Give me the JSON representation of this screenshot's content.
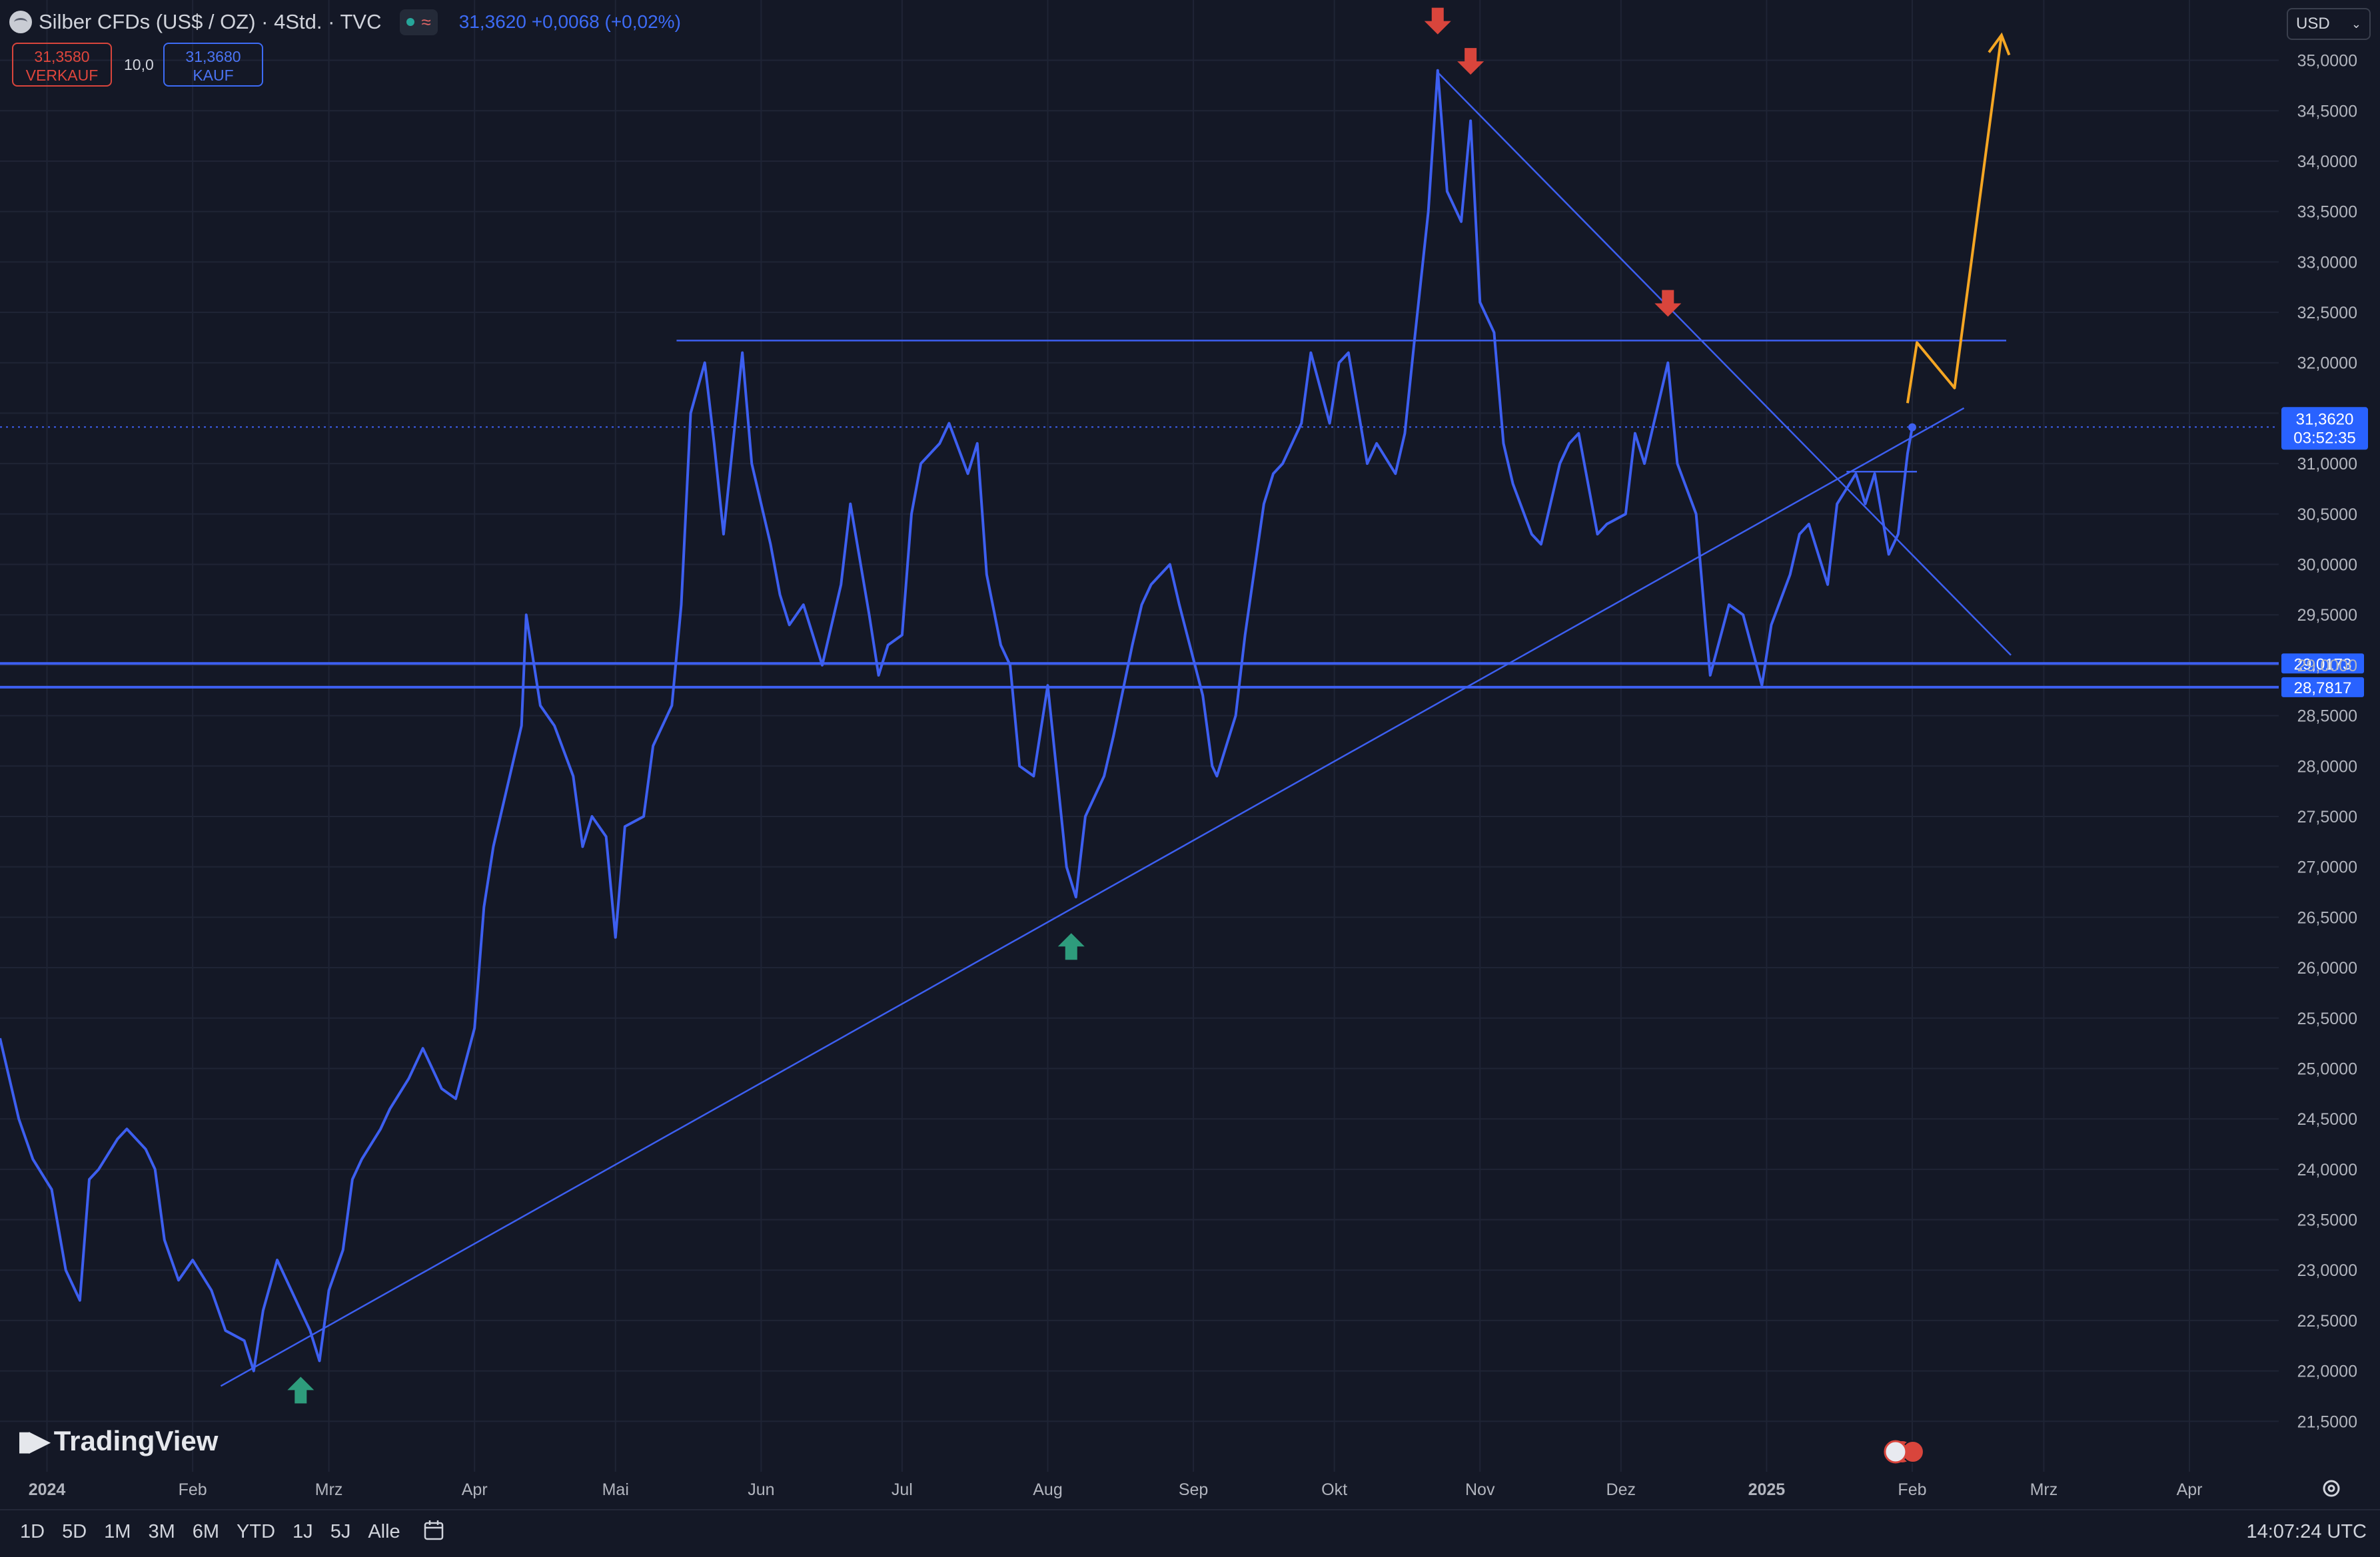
{
  "header": {
    "symbol_title": "Silber CFDs (US$ / OZ) · 4Std. · TVC",
    "last_price": "31,3620",
    "change": "+0,0068 (+0,02%)",
    "sell_price": "31,3580",
    "sell_label": "VERKAUF",
    "spread": "10,0",
    "buy_price": "31,3680",
    "buy_label": "KAUF",
    "currency": "USD"
  },
  "branding": {
    "logo_text": "TradingView"
  },
  "bottom_bar": {
    "ranges": [
      "1D",
      "5D",
      "1M",
      "3M",
      "6M",
      "YTD",
      "1J",
      "5J",
      "Alle"
    ],
    "clock": "14:07:24 UTC"
  },
  "colors": {
    "background": "#141826",
    "price_line": "#3d5ff0",
    "drawing_line": "#3d5ff0",
    "arrow_down": "#d9453c",
    "arrow_up": "#2e9c7c",
    "projection": "#f5a623",
    "label_bg": "#2962ff"
  },
  "chart_data": {
    "type": "line",
    "title": "Silber CFDs (US$ / OZ) · 4Std. · TVC",
    "xlabel": "",
    "ylabel": "",
    "x_tick_labels": [
      "2024",
      "Feb",
      "Mrz",
      "Apr",
      "Mai",
      "Jun",
      "Jul",
      "Aug",
      "Sep",
      "Okt",
      "Nov",
      "Dez",
      "2025",
      "Feb",
      "Mrz",
      "Apr"
    ],
    "x_tick_dates": [
      "2024-01-01",
      "2024-02-01",
      "2024-03-01",
      "2024-04-01",
      "2024-05-01",
      "2024-06-01",
      "2024-07-01",
      "2024-08-01",
      "2024-09-01",
      "2024-10-01",
      "2024-11-01",
      "2024-12-01",
      "2025-01-01",
      "2025-02-01",
      "2025-03-01",
      "2025-04-01"
    ],
    "y_tick_labels": [
      "21,5000",
      "22,0000",
      "22,5000",
      "23,0000",
      "23,5000",
      "24,0000",
      "24,5000",
      "25,0000",
      "25,5000",
      "26,0000",
      "26,5000",
      "27,0000",
      "27,5000",
      "28,0000",
      "28,5000",
      "29,0000",
      "29,5000",
      "30,0000",
      "30,5000",
      "31,0000",
      "31,5000",
      "32,0000",
      "32,5000",
      "33,0000",
      "33,5000",
      "34,0000",
      "34,5000",
      "35,0000"
    ],
    "ylim": [
      21.0,
      35.4
    ],
    "xlim": [
      "2023-12-22",
      "2025-04-20"
    ],
    "grid": true,
    "series": [
      {
        "points": [
          [
            "2023-12-22",
            25.3
          ],
          [
            "2023-12-26",
            24.5
          ],
          [
            "2023-12-29",
            24.1
          ],
          [
            "2024-01-02",
            23.8
          ],
          [
            "2024-01-05",
            23.0
          ],
          [
            "2024-01-08",
            22.7
          ],
          [
            "2024-01-10",
            23.9
          ],
          [
            "2024-01-12",
            24.0
          ],
          [
            "2024-01-16",
            24.3
          ],
          [
            "2024-01-18",
            24.4
          ],
          [
            "2024-01-22",
            24.2
          ],
          [
            "2024-01-24",
            24.0
          ],
          [
            "2024-01-26",
            23.3
          ],
          [
            "2024-01-29",
            22.9
          ],
          [
            "2024-02-01",
            23.1
          ],
          [
            "2024-02-05",
            22.8
          ],
          [
            "2024-02-08",
            22.4
          ],
          [
            "2024-02-12",
            22.3
          ],
          [
            "2024-02-14",
            22.0
          ],
          [
            "2024-02-16",
            22.6
          ],
          [
            "2024-02-19",
            23.1
          ],
          [
            "2024-02-22",
            22.8
          ],
          [
            "2024-02-26",
            22.4
          ],
          [
            "2024-02-28",
            22.1
          ],
          [
            "2024-03-01",
            22.8
          ],
          [
            "2024-03-04",
            23.2
          ],
          [
            "2024-03-06",
            23.9
          ],
          [
            "2024-03-08",
            24.1
          ],
          [
            "2024-03-12",
            24.4
          ],
          [
            "2024-03-14",
            24.6
          ],
          [
            "2024-03-18",
            24.9
          ],
          [
            "2024-03-21",
            25.2
          ],
          [
            "2024-03-25",
            24.8
          ],
          [
            "2024-03-28",
            24.7
          ],
          [
            "2024-04-01",
            25.4
          ],
          [
            "2024-04-03",
            26.6
          ],
          [
            "2024-04-05",
            27.2
          ],
          [
            "2024-04-08",
            27.8
          ],
          [
            "2024-04-11",
            28.4
          ],
          [
            "2024-04-12",
            29.5
          ],
          [
            "2024-04-15",
            28.6
          ],
          [
            "2024-04-18",
            28.4
          ],
          [
            "2024-04-22",
            27.9
          ],
          [
            "2024-04-24",
            27.2
          ],
          [
            "2024-04-26",
            27.5
          ],
          [
            "2024-04-29",
            27.3
          ],
          [
            "2024-05-01",
            26.3
          ],
          [
            "2024-05-03",
            27.4
          ],
          [
            "2024-05-07",
            27.5
          ],
          [
            "2024-05-09",
            28.2
          ],
          [
            "2024-05-13",
            28.6
          ],
          [
            "2024-05-15",
            29.6
          ],
          [
            "2024-05-17",
            31.5
          ],
          [
            "2024-05-20",
            32.0
          ],
          [
            "2024-05-22",
            31.2
          ],
          [
            "2024-05-24",
            30.3
          ],
          [
            "2024-05-28",
            32.1
          ],
          [
            "2024-05-30",
            31.0
          ],
          [
            "2024-06-03",
            30.2
          ],
          [
            "2024-06-05",
            29.7
          ],
          [
            "2024-06-07",
            29.4
          ],
          [
            "2024-06-10",
            29.6
          ],
          [
            "2024-06-12",
            29.3
          ],
          [
            "2024-06-14",
            29.0
          ],
          [
            "2024-06-18",
            29.8
          ],
          [
            "2024-06-20",
            30.6
          ],
          [
            "2024-06-24",
            29.5
          ],
          [
            "2024-06-26",
            28.9
          ],
          [
            "2024-06-28",
            29.2
          ],
          [
            "2024-07-01",
            29.3
          ],
          [
            "2024-07-03",
            30.5
          ],
          [
            "2024-07-05",
            31.0
          ],
          [
            "2024-07-09",
            31.2
          ],
          [
            "2024-07-11",
            31.4
          ],
          [
            "2024-07-15",
            30.9
          ],
          [
            "2024-07-17",
            31.2
          ],
          [
            "2024-07-19",
            29.9
          ],
          [
            "2024-07-22",
            29.2
          ],
          [
            "2024-07-24",
            29.0
          ],
          [
            "2024-07-26",
            28.0
          ],
          [
            "2024-07-29",
            27.9
          ],
          [
            "2024-08-01",
            28.8
          ],
          [
            "2024-08-05",
            27.0
          ],
          [
            "2024-08-07",
            26.7
          ],
          [
            "2024-08-09",
            27.5
          ],
          [
            "2024-08-13",
            27.9
          ],
          [
            "2024-08-15",
            28.3
          ],
          [
            "2024-08-19",
            29.2
          ],
          [
            "2024-08-21",
            29.6
          ],
          [
            "2024-08-23",
            29.8
          ],
          [
            "2024-08-27",
            30.0
          ],
          [
            "2024-08-29",
            29.6
          ],
          [
            "2024-09-03",
            28.7
          ],
          [
            "2024-09-05",
            28.0
          ],
          [
            "2024-09-06",
            27.9
          ],
          [
            "2024-09-10",
            28.5
          ],
          [
            "2024-09-12",
            29.3
          ],
          [
            "2024-09-16",
            30.6
          ],
          [
            "2024-09-18",
            30.9
          ],
          [
            "2024-09-20",
            31.0
          ],
          [
            "2024-09-24",
            31.4
          ],
          [
            "2024-09-26",
            32.1
          ],
          [
            "2024-09-30",
            31.4
          ],
          [
            "2024-10-02",
            32.0
          ],
          [
            "2024-10-04",
            32.1
          ],
          [
            "2024-10-08",
            31.0
          ],
          [
            "2024-10-10",
            31.2
          ],
          [
            "2024-10-14",
            30.9
          ],
          [
            "2024-10-16",
            31.3
          ],
          [
            "2024-10-18",
            32.2
          ],
          [
            "2024-10-21",
            33.5
          ],
          [
            "2024-10-23",
            34.9
          ],
          [
            "2024-10-25",
            33.7
          ],
          [
            "2024-10-28",
            33.4
          ],
          [
            "2024-10-30",
            34.4
          ],
          [
            "2024-11-01",
            32.6
          ],
          [
            "2024-11-04",
            32.3
          ],
          [
            "2024-11-06",
            31.2
          ],
          [
            "2024-11-08",
            30.8
          ],
          [
            "2024-11-12",
            30.3
          ],
          [
            "2024-11-14",
            30.2
          ],
          [
            "2024-11-18",
            31.0
          ],
          [
            "2024-11-20",
            31.2
          ],
          [
            "2024-11-22",
            31.3
          ],
          [
            "2024-11-26",
            30.3
          ],
          [
            "2024-11-28",
            30.4
          ],
          [
            "2024-12-02",
            30.5
          ],
          [
            "2024-12-04",
            31.3
          ],
          [
            "2024-12-06",
            31.0
          ],
          [
            "2024-12-09",
            31.6
          ],
          [
            "2024-12-11",
            32.0
          ],
          [
            "2024-12-13",
            31.0
          ],
          [
            "2024-12-17",
            30.5
          ],
          [
            "2024-12-19",
            29.4
          ],
          [
            "2024-12-20",
            28.9
          ],
          [
            "2024-12-24",
            29.6
          ],
          [
            "2024-12-27",
            29.5
          ],
          [
            "2024-12-31",
            28.8
          ],
          [
            "2025-01-02",
            29.4
          ],
          [
            "2025-01-06",
            29.9
          ],
          [
            "2025-01-08",
            30.3
          ],
          [
            "2025-01-10",
            30.4
          ],
          [
            "2025-01-14",
            29.8
          ],
          [
            "2025-01-16",
            30.6
          ],
          [
            "2025-01-20",
            30.9
          ],
          [
            "2025-01-22",
            30.6
          ],
          [
            "2025-01-24",
            30.9
          ],
          [
            "2025-01-27",
            30.1
          ],
          [
            "2025-01-29",
            30.3
          ],
          [
            "2025-01-31",
            31.1
          ],
          [
            "2025-02-01",
            31.36
          ]
        ]
      }
    ],
    "horizontal_levels": [
      {
        "value": 29.0173,
        "label": "29,0173"
      },
      {
        "value": 28.7817,
        "label": "28,7817"
      }
    ],
    "current_price_label": {
      "value": 31.362,
      "price": "31,3620",
      "countdown": "03:52:35"
    },
    "trendlines": [
      {
        "from": [
          "2024-02-07",
          21.85
        ],
        "to": [
          "2025-02-12",
          31.55
        ]
      },
      {
        "from": [
          "2024-10-23",
          34.88
        ],
        "to": [
          "2025-02-22",
          29.1
        ]
      }
    ],
    "resistance_lines": [
      {
        "from": [
          "2024-05-14",
          32.22
        ],
        "to": [
          "2025-02-21",
          32.22
        ]
      },
      {
        "from": [
          "2025-01-18",
          30.92
        ],
        "to": [
          "2025-02-02",
          30.92
        ]
      }
    ],
    "projection_path": [
      [
        "2025-01-31",
        31.6
      ],
      [
        "2025-02-02",
        32.2
      ],
      [
        "2025-02-10",
        31.75
      ],
      [
        "2025-02-20",
        35.25
      ]
    ],
    "markers_down": [
      [
        "2024-10-23",
        35.35
      ],
      [
        "2024-10-30",
        34.95
      ],
      [
        "2024-12-11",
        32.55
      ]
    ],
    "markers_up": [
      [
        "2024-02-24",
        21.85
      ],
      [
        "2024-08-06",
        26.25
      ]
    ]
  }
}
